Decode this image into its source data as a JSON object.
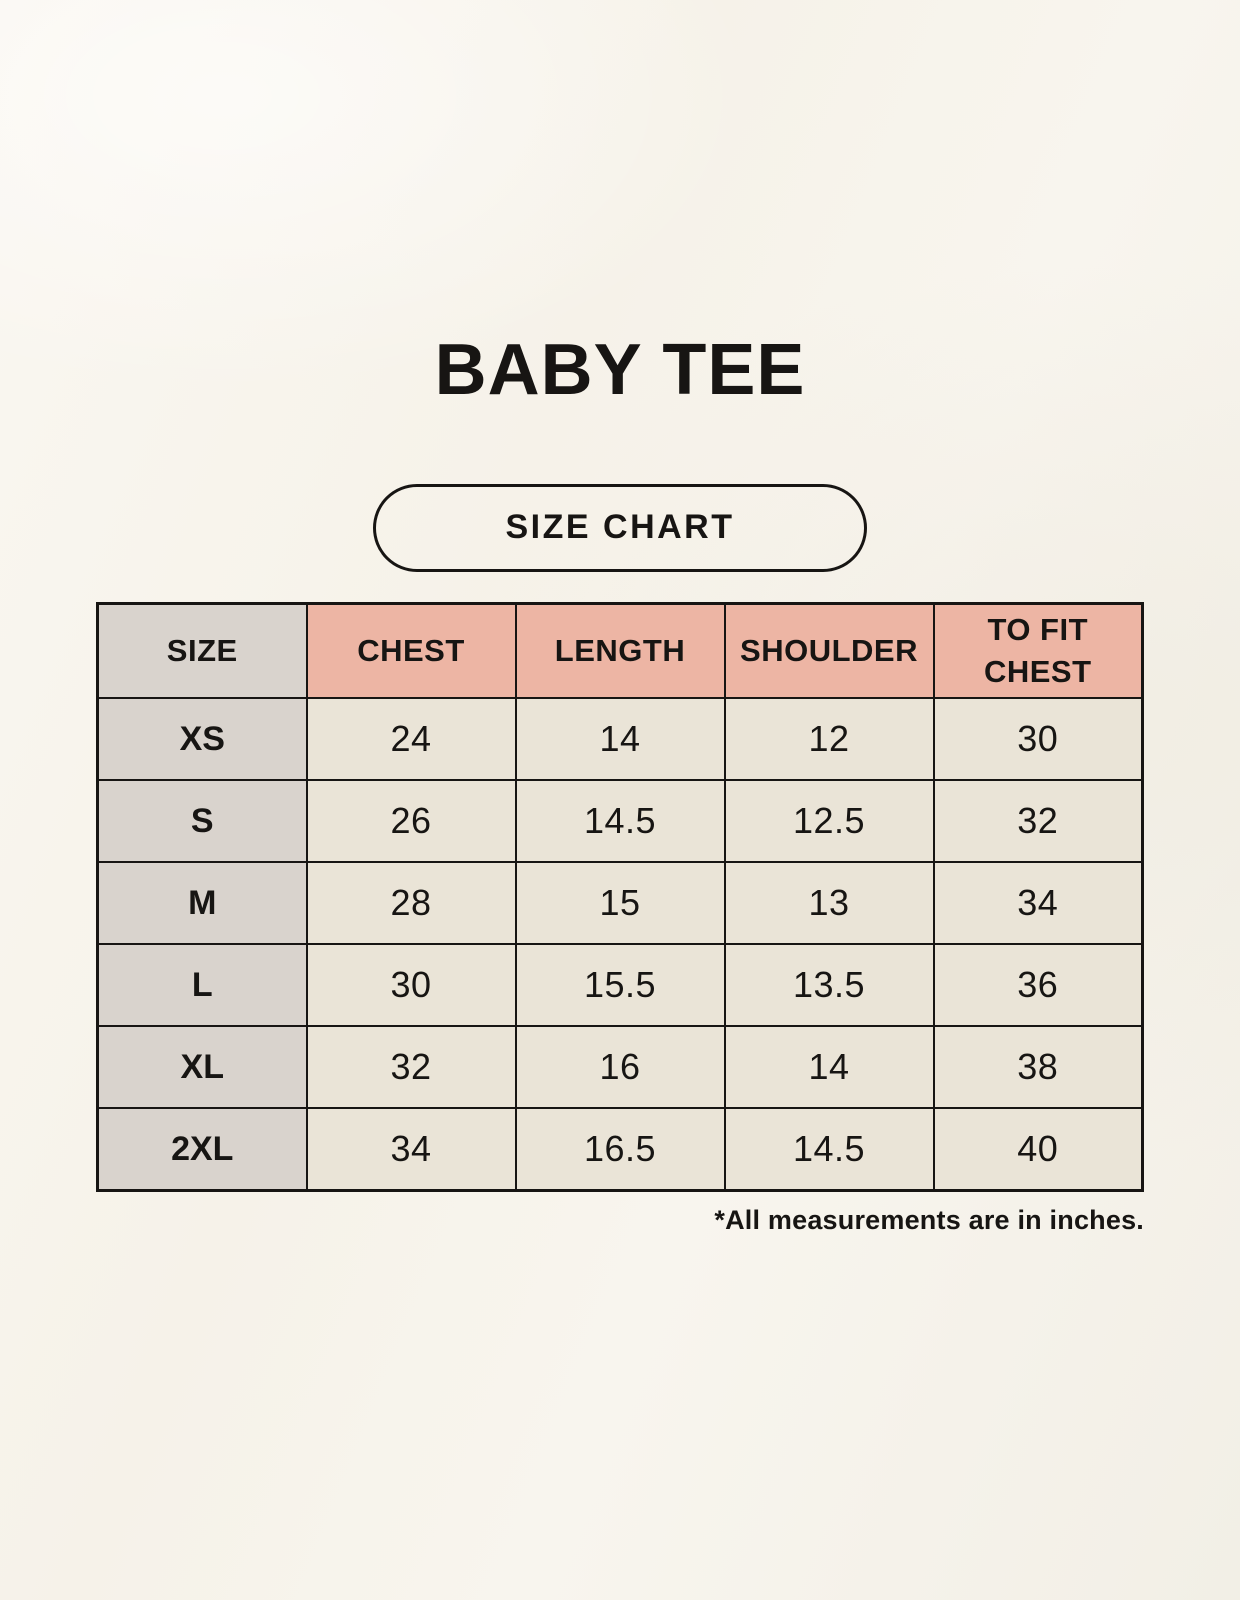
{
  "colors": {
    "background": "#f8f5ee",
    "table_header_pink": "#edb5a4",
    "size_column_gray": "#d9d3cd",
    "cell_cream": "#eae4d7",
    "border_black": "#171513",
    "text_black": "#171513"
  },
  "header": {
    "title": "BABY TEE",
    "chart_label": "SIZE CHART"
  },
  "chart_data": {
    "type": "table",
    "title": "BABY TEE",
    "subtitle": "SIZE CHART",
    "columns": [
      "SIZE",
      "CHEST",
      "LENGTH",
      "SHOULDER",
      "TO FIT CHEST"
    ],
    "rows": [
      {
        "size": "XS",
        "values": [
          "24",
          "14",
          "12",
          "30"
        ]
      },
      {
        "size": "S",
        "values": [
          "26",
          "14.5",
          "12.5",
          "32"
        ]
      },
      {
        "size": "M",
        "values": [
          "28",
          "15",
          "13",
          "34"
        ]
      },
      {
        "size": "L",
        "values": [
          "30",
          "15.5",
          "13.5",
          "36"
        ]
      },
      {
        "size": "XL",
        "values": [
          "32",
          "16",
          "14",
          "38"
        ]
      },
      {
        "size": "2XL",
        "values": [
          "34",
          "16.5",
          "14.5",
          "40"
        ]
      }
    ],
    "footnote": "*All measurements are in inches."
  }
}
